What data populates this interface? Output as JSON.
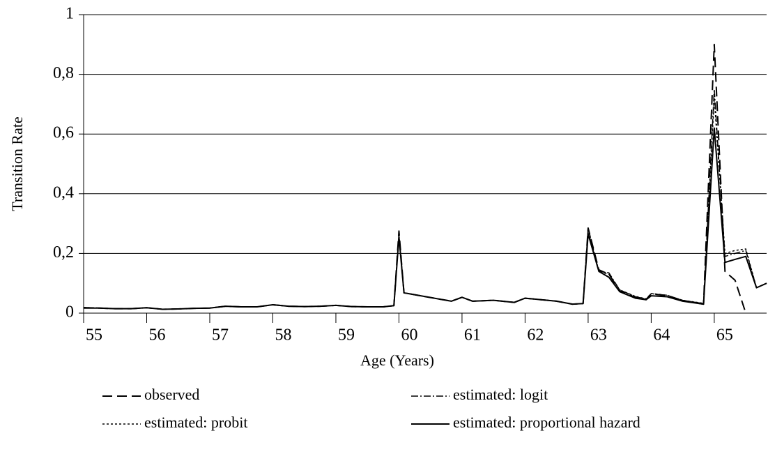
{
  "chart_data": {
    "type": "line",
    "x_label": "Age (Years)",
    "y_label": "Transition Rate",
    "xlim": [
      55,
      65.83
    ],
    "xticks": [
      55,
      56,
      57,
      58,
      59,
      60,
      61,
      62,
      63,
      64,
      65
    ],
    "ylim": [
      0,
      1
    ],
    "yticks": [
      0,
      {
        "value": 0.2,
        "label": "0,2"
      },
      {
        "value": 0.4,
        "label": "0,4"
      },
      {
        "value": 0.6,
        "label": "0,6"
      },
      {
        "value": 0.8,
        "label": "0,8"
      },
      1
    ],
    "grid": true,
    "legend": "bottom",
    "x": [
      55,
      55.25,
      55.5,
      55.75,
      56,
      56.25,
      56.5,
      56.75,
      57,
      57.25,
      57.5,
      57.75,
      58,
      58.25,
      58.5,
      58.75,
      59,
      59.25,
      59.5,
      59.75,
      59.92,
      60,
      60.08,
      60.83,
      61,
      61.17,
      61.5,
      61.83,
      62,
      62.5,
      62.75,
      62.92,
      63,
      63.17,
      63.33,
      63.5,
      63.75,
      63.92,
      64,
      64.25,
      64.5,
      64.83,
      65,
      65.17,
      65.33,
      65.5,
      65.67,
      65.83
    ],
    "series": [
      {
        "name": "observed",
        "color": "#000000",
        "dash": "14 7",
        "width": 2,
        "values": [
          0.018,
          0.017,
          0.015,
          0.015,
          0.018,
          0.013,
          0.014,
          0.016,
          0.017,
          0.023,
          0.021,
          0.021,
          0.028,
          0.023,
          0.022,
          0.023,
          0.026,
          0.022,
          0.021,
          0.021,
          0.025,
          0.275,
          0.068,
          0.04,
          0.053,
          0.04,
          0.043,
          0.036,
          0.05,
          0.04,
          0.03,
          0.032,
          0.285,
          0.145,
          0.13,
          0.075,
          0.052,
          0.045,
          0.065,
          0.058,
          0.042,
          0.03,
          0.9,
          0.14,
          0.11,
          0,
          null,
          null
        ]
      },
      {
        "name": "estimated: logit",
        "color": "#000000",
        "dash": "10 3 2 3",
        "width": 1.5,
        "values": [
          0.019,
          0.017,
          0.015,
          0.015,
          0.018,
          0.013,
          0.014,
          0.016,
          0.017,
          0.023,
          0.021,
          0.021,
          0.028,
          0.023,
          0.022,
          0.023,
          0.026,
          0.022,
          0.021,
          0.021,
          0.025,
          0.265,
          0.068,
          0.04,
          0.053,
          0.04,
          0.043,
          0.036,
          0.05,
          0.04,
          0.03,
          0.032,
          0.285,
          0.14,
          0.135,
          0.078,
          0.055,
          0.047,
          0.065,
          0.06,
          0.043,
          0.032,
          0.75,
          0.19,
          0.2,
          0.21,
          0.085,
          0.1
        ]
      },
      {
        "name": "estimated: probit",
        "color": "#000000",
        "dash": "3 3",
        "width": 1.5,
        "values": [
          0.019,
          0.017,
          0.015,
          0.015,
          0.018,
          0.013,
          0.014,
          0.016,
          0.017,
          0.023,
          0.021,
          0.021,
          0.028,
          0.023,
          0.022,
          0.023,
          0.026,
          0.022,
          0.021,
          0.021,
          0.025,
          0.26,
          0.068,
          0.04,
          0.053,
          0.04,
          0.043,
          0.036,
          0.05,
          0.04,
          0.03,
          0.032,
          0.28,
          0.14,
          0.13,
          0.078,
          0.056,
          0.048,
          0.066,
          0.06,
          0.043,
          0.033,
          0.72,
          0.2,
          0.21,
          0.215,
          0.085,
          0.1
        ]
      },
      {
        "name": "estimated: proportional hazard",
        "color": "#000000",
        "dash": "none",
        "width": 2,
        "values": [
          0.017,
          0.017,
          0.015,
          0.015,
          0.018,
          0.013,
          0.014,
          0.016,
          0.017,
          0.023,
          0.021,
          0.021,
          0.028,
          0.023,
          0.022,
          0.023,
          0.026,
          0.022,
          0.021,
          0.021,
          0.025,
          0.255,
          0.068,
          0.04,
          0.053,
          0.04,
          0.043,
          0.036,
          0.05,
          0.04,
          0.03,
          0.032,
          0.265,
          0.14,
          0.12,
          0.072,
          0.05,
          0.045,
          0.058,
          0.055,
          0.04,
          0.03,
          0.62,
          0.17,
          0.18,
          0.19,
          0.085,
          0.1
        ]
      }
    ]
  }
}
